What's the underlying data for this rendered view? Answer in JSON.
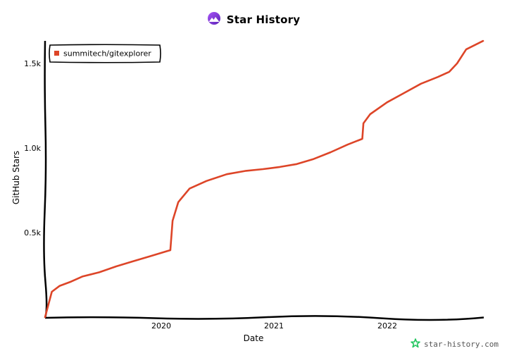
{
  "header": {
    "title": "Star History",
    "logo_icon": "star-history-logo-icon"
  },
  "watermark": {
    "text": "star-history.com",
    "icon": "star-outline-icon",
    "icon_color": "#22c55e"
  },
  "colors": {
    "series": "#dd4528",
    "axis": "#000000",
    "background": "#ffffff"
  },
  "chart_data": {
    "type": "line",
    "title": "Star History",
    "xlabel": "Date",
    "ylabel": "GitHub Stars",
    "x_tick_labels": [
      "2020",
      "2021",
      "2022"
    ],
    "y_tick_labels": [
      "0.5k",
      "1.0k",
      "1.5k"
    ],
    "y_ticks": [
      500,
      1000,
      1500
    ],
    "ylim": [
      0,
      1650
    ],
    "xlim": [
      2018.97,
      2022.85
    ],
    "grid": false,
    "legend_position": "top-left",
    "series": [
      {
        "name": "summitech/gitexplorer",
        "color": "#dd4528",
        "x": [
          2018.97,
          2019.03,
          2019.1,
          2019.2,
          2019.3,
          2019.45,
          2019.6,
          2019.75,
          2019.9,
          2020.05,
          2020.08,
          2020.1,
          2020.15,
          2020.25,
          2020.4,
          2020.58,
          2020.75,
          2020.9,
          2021.05,
          2021.2,
          2021.35,
          2021.5,
          2021.65,
          2021.78,
          2021.79,
          2021.85,
          2022.0,
          2022.15,
          2022.3,
          2022.45,
          2022.55,
          2022.62,
          2022.7,
          2022.85
        ],
        "values": [
          0,
          150,
          185,
          210,
          240,
          265,
          300,
          330,
          360,
          390,
          396,
          570,
          680,
          760,
          805,
          845,
          865,
          875,
          888,
          905,
          935,
          975,
          1020,
          1054,
          1146,
          1200,
          1270,
          1325,
          1380,
          1420,
          1450,
          1500,
          1583,
          1633
        ]
      }
    ]
  }
}
